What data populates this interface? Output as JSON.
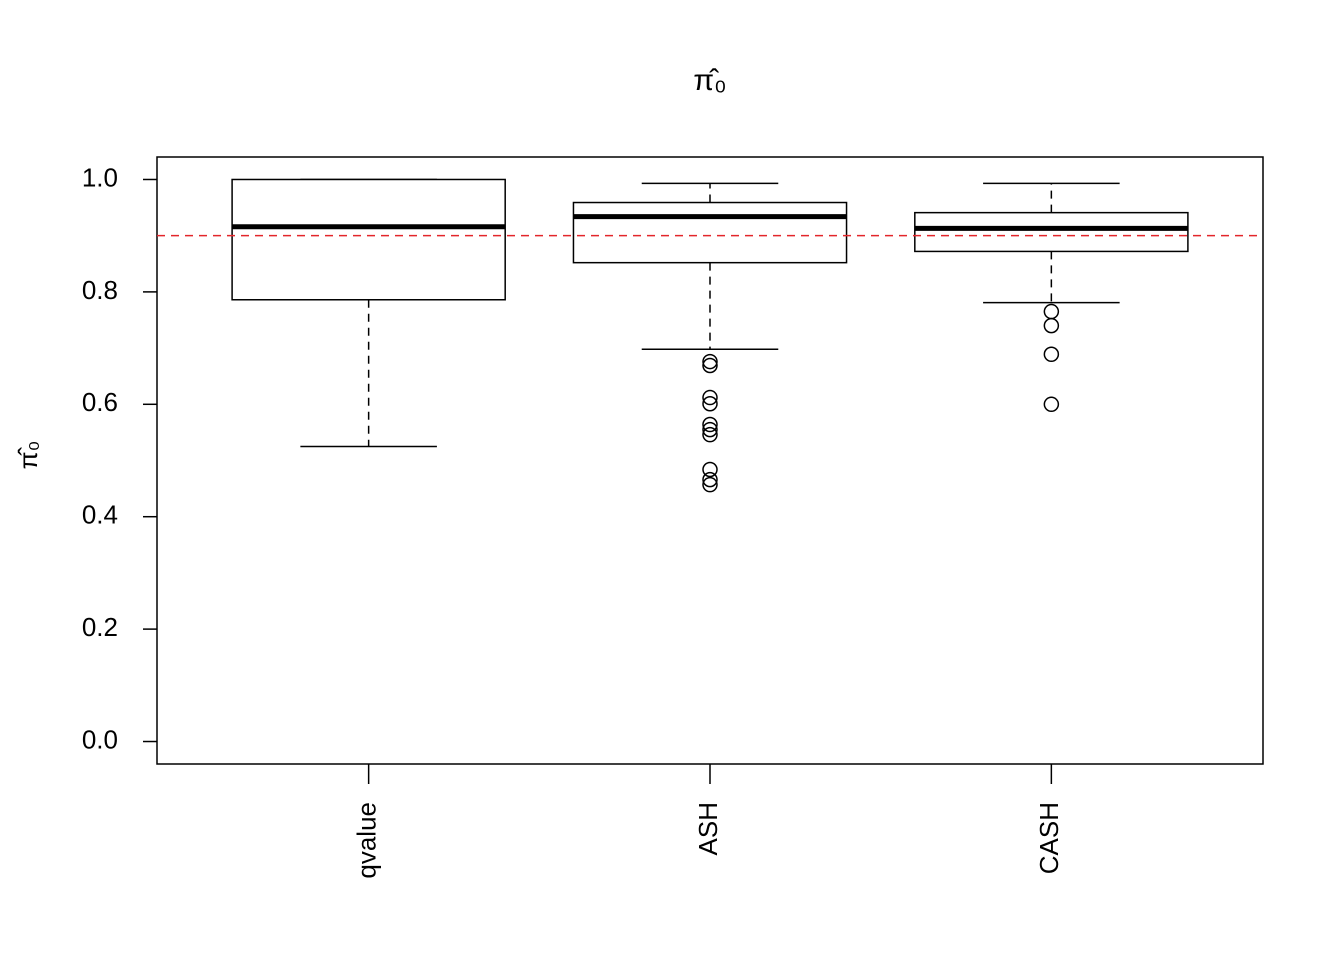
{
  "chart_data": {
    "type": "boxplot",
    "title": "π̂₀",
    "y_label": "π̂₀",
    "categories": [
      "qvalue",
      "ASH",
      "CASH"
    ],
    "boxes": [
      {
        "min": 0.525,
        "q1": 0.786,
        "median": 0.916,
        "q3": 1.0,
        "max": 1.0,
        "outliers": []
      },
      {
        "min": 0.698,
        "q1": 0.852,
        "median": 0.934,
        "q3": 0.959,
        "max": 0.993,
        "outliers": [
          0.676,
          0.669,
          0.612,
          0.601,
          0.564,
          0.555,
          0.546,
          0.484,
          0.466,
          0.457
        ]
      },
      {
        "min": 0.781,
        "q1": 0.872,
        "median": 0.913,
        "q3": 0.941,
        "max": 0.993,
        "outliers": [
          0.765,
          0.74,
          0.689,
          0.6
        ]
      }
    ],
    "reference_line": {
      "value": 0.9,
      "color": "#e3262b"
    },
    "ylim": [
      -0.04,
      1.04
    ],
    "yticks": [
      {
        "value": 0,
        "label": "0.0"
      },
      0.2,
      0.4,
      0.6,
      0.8,
      {
        "value": 1,
        "label": "1.0"
      }
    ]
  }
}
